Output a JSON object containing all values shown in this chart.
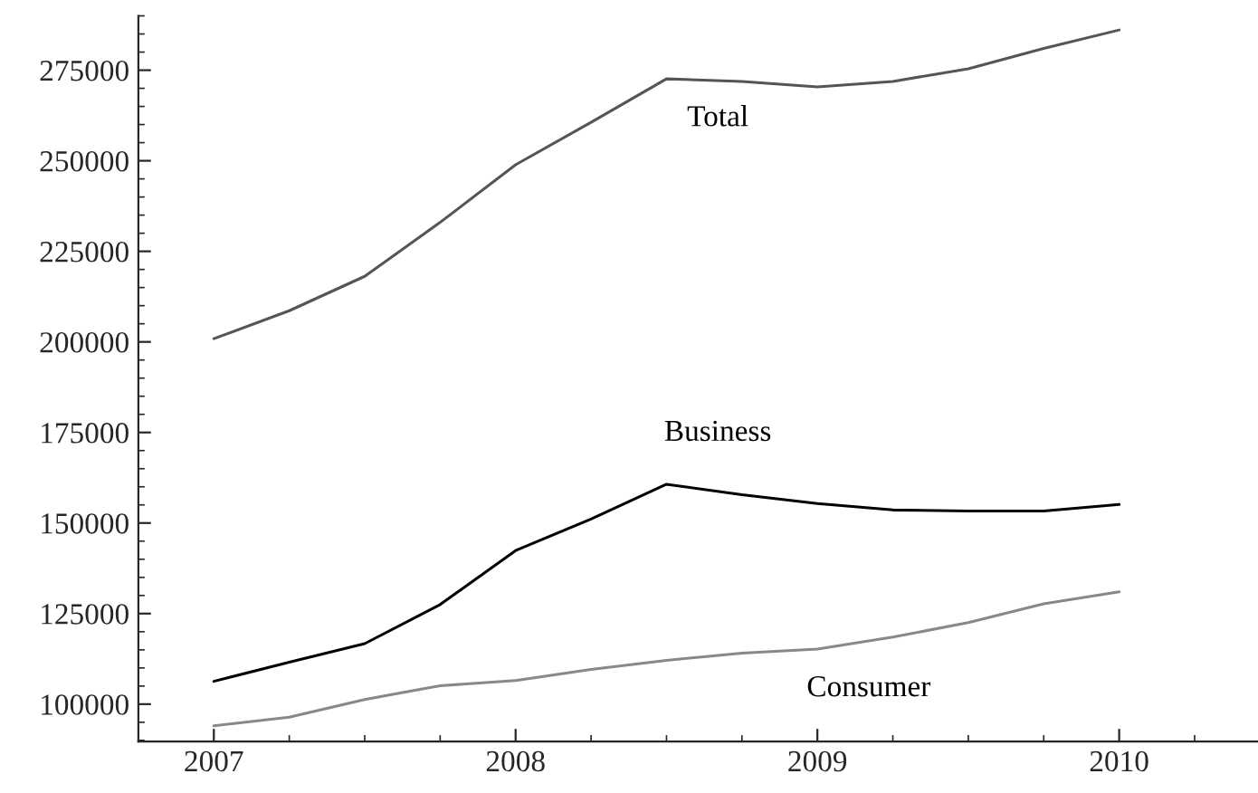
{
  "chart_data": {
    "type": "line",
    "x": [
      2007,
      2007.25,
      2007.5,
      2007.75,
      2008,
      2008.25,
      2008.5,
      2008.75,
      2009,
      2009.25,
      2009.5,
      2009.75,
      2010
    ],
    "series": [
      {
        "name": "Total",
        "color": "#555555",
        "values": [
          200900,
          208600,
          218100,
          233000,
          248900,
          260600,
          272600,
          271900,
          270400,
          271900,
          275400,
          281000,
          286100
        ]
      },
      {
        "name": "Business",
        "color": "#000000",
        "values": [
          106300,
          111600,
          116700,
          127500,
          142400,
          151100,
          160700,
          157800,
          155400,
          153600,
          153300,
          153300,
          155100
        ]
      },
      {
        "name": "Consumer",
        "color": "#888888",
        "values": [
          94000,
          96400,
          101300,
          105100,
          106500,
          109600,
          112100,
          114100,
          115200,
          118500,
          122500,
          127700,
          131000
        ]
      }
    ],
    "xlim": [
      2006.75,
      2010.46
    ],
    "xticks": [
      2007,
      2008,
      2009,
      2010
    ],
    "ylim": [
      89700,
      290000
    ],
    "yticks": [
      100000,
      125000,
      150000,
      175000,
      200000,
      225000,
      250000,
      275000
    ],
    "grid": false,
    "legend": false,
    "marker": "none",
    "line_style": "solid"
  }
}
